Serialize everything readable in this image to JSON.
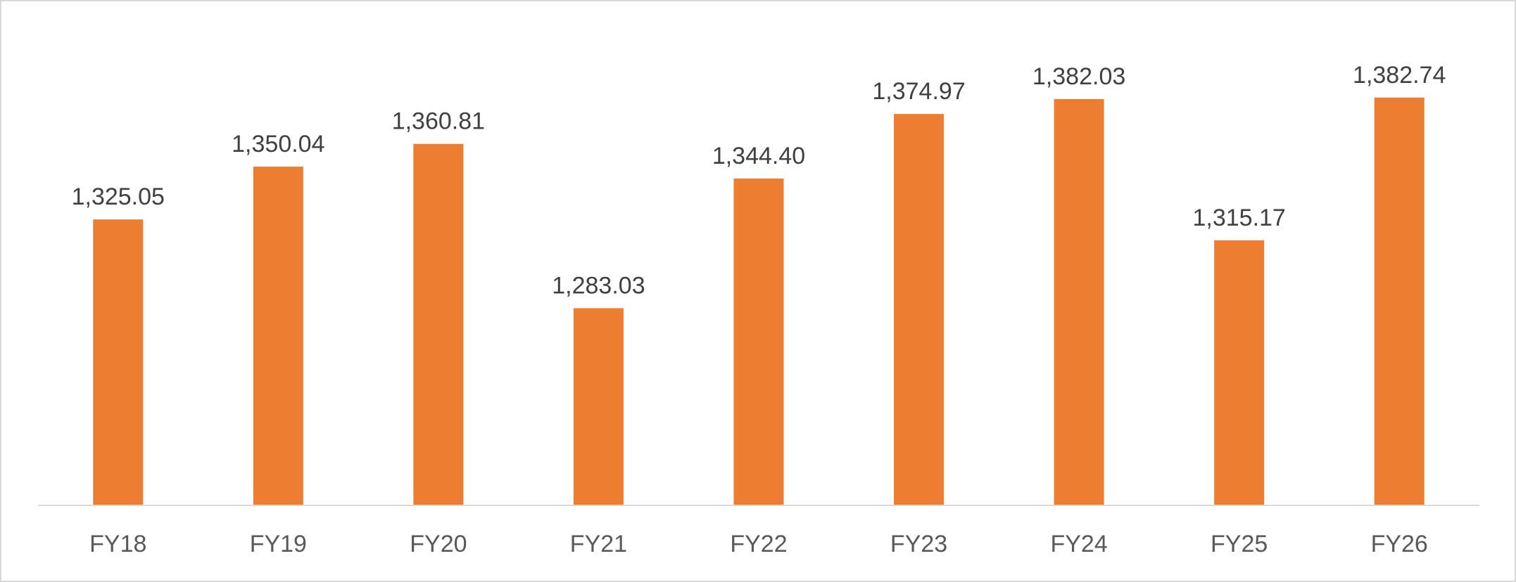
{
  "chart_data": {
    "type": "bar",
    "title": "",
    "xlabel": "",
    "ylabel": "",
    "categories": [
      "FY18",
      "FY19",
      "FY20",
      "FY21",
      "FY22",
      "FY23",
      "FY24",
      "FY25",
      "FY26"
    ],
    "values": [
      1325.05,
      1350.04,
      1360.81,
      1283.03,
      1344.4,
      1374.97,
      1382.03,
      1315.17,
      1382.74
    ],
    "data_labels": [
      "1,325.05",
      "1,350.04",
      "1,360.81",
      "1,283.03",
      "1,344.40",
      "1,374.97",
      "1,382.03",
      "1,315.17",
      "1,382.74"
    ],
    "ylim": [
      1190,
      1390
    ],
    "grid": false,
    "legend": "none",
    "bar_color": "#ED7D31",
    "axis_color": "#d9d9d9"
  }
}
